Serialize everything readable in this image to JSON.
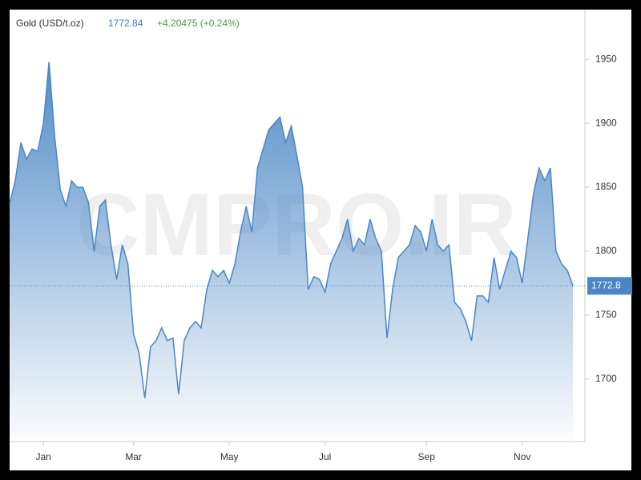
{
  "chart_data": {
    "type": "area",
    "title": "Gold (USD/t.oz)",
    "last": "1772.84",
    "change": "+4.20475 (+0.24%)",
    "price_tag": "1772.8",
    "watermark": "CMPRO.IR",
    "categories": [
      null,
      null,
      null,
      null,
      null,
      null,
      "Jan",
      null,
      null,
      null,
      null,
      null,
      null,
      null,
      null,
      null,
      null,
      null,
      null,
      null,
      null,
      null,
      "Mar",
      null,
      null,
      null,
      null,
      null,
      null,
      null,
      null,
      null,
      null,
      null,
      null,
      null,
      null,
      null,
      null,
      "May",
      null,
      null,
      null,
      null,
      null,
      null,
      null,
      null,
      null,
      null,
      null,
      null,
      null,
      null,
      null,
      null,
      "Jul",
      null,
      null,
      null,
      null,
      null,
      null,
      null,
      null,
      null,
      null,
      null,
      null,
      null,
      null,
      null,
      null,
      null,
      "Sep",
      null,
      null,
      null,
      null,
      null,
      null,
      null,
      null,
      null,
      null,
      null,
      null,
      null,
      null,
      null,
      null,
      "Nov",
      null,
      null,
      null,
      null,
      null,
      null,
      null,
      null,
      null
    ],
    "values": [
      1837,
      1855,
      1885,
      1872,
      1880,
      1878,
      1900,
      1948,
      1890,
      1848,
      1835,
      1855,
      1850,
      1850,
      1838,
      1800,
      1835,
      1840,
      1805,
      1778,
      1805,
      1790,
      1735,
      1720,
      1685,
      1725,
      1730,
      1740,
      1730,
      1732,
      1688,
      1730,
      1740,
      1745,
      1740,
      1770,
      1785,
      1780,
      1785,
      1775,
      1790,
      1815,
      1835,
      1815,
      1865,
      1880,
      1895,
      1900,
      1905,
      1885,
      1898,
      1875,
      1850,
      1770,
      1780,
      1778,
      1768,
      1790,
      1800,
      1810,
      1825,
      1800,
      1810,
      1805,
      1825,
      1810,
      1800,
      1732,
      1770,
      1795,
      1800,
      1805,
      1820,
      1815,
      1800,
      1825,
      1805,
      1800,
      1805,
      1760,
      1755,
      1745,
      1730,
      1765,
      1765,
      1760,
      1795,
      1770,
      1785,
      1800,
      1795,
      1775,
      1810,
      1845,
      1865,
      1855,
      1865,
      1800,
      1790,
      1785,
      1772.84
    ],
    "color": "#4a86c5",
    "ylim": [
      1651,
      1989
    ],
    "yticks": [
      1700,
      1750,
      1800,
      1850,
      1900,
      1950
    ],
    "grid": false
  }
}
